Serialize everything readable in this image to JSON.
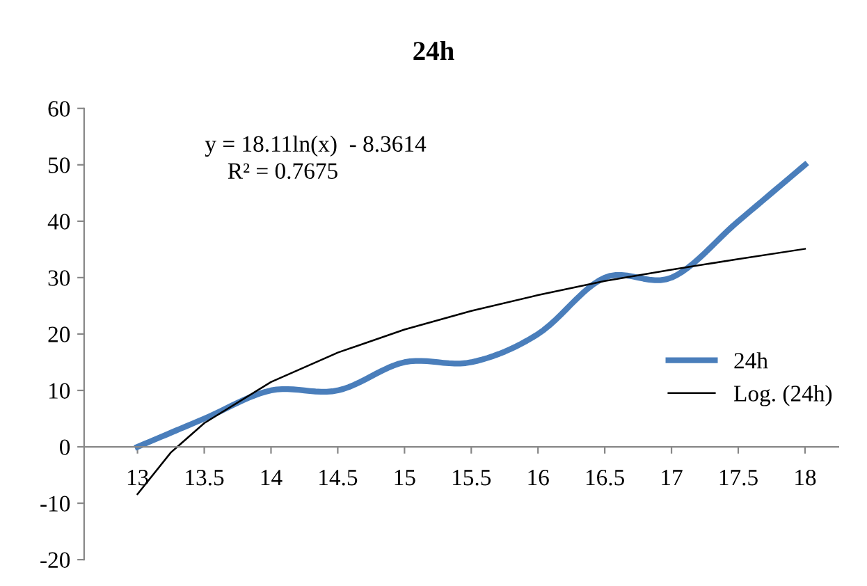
{
  "chart_data": {
    "type": "line",
    "title": "24h",
    "x": [
      13,
      13.5,
      14,
      14.5,
      15,
      15.5,
      16,
      16.5,
      17,
      17.5,
      18
    ],
    "series": [
      {
        "name": "24h",
        "color": "#4a7ebb",
        "values": [
          0,
          5,
          10,
          10,
          15,
          15,
          20,
          30,
          30,
          40,
          50
        ]
      },
      {
        "name": "Log. (24h)",
        "color": "#000000",
        "type": "line",
        "x": [
          13,
          13.25,
          13.5,
          14,
          14.5,
          15,
          15.5,
          16,
          16.5,
          17,
          17.5,
          18
        ],
        "values": [
          -8.4,
          -1.0,
          4.2,
          11.5,
          16.7,
          20.8,
          24.1,
          26.9,
          29.4,
          31.4,
          33.3,
          35.1
        ]
      }
    ],
    "xlim": [
      12.6,
      18.25
    ],
    "xticks": [
      13,
      13.5,
      14,
      14.5,
      15,
      15.5,
      16,
      16.5,
      17,
      17.5,
      18
    ],
    "ylim": [
      -20,
      60
    ],
    "yticks": [
      -20,
      -10,
      0,
      10,
      20,
      30,
      40,
      50,
      60
    ],
    "annotations": [
      "y = 18.11ln(x)  - 8.3614",
      "R² = 0.7675"
    ],
    "grid": false,
    "legend": "right",
    "marker": "none"
  }
}
